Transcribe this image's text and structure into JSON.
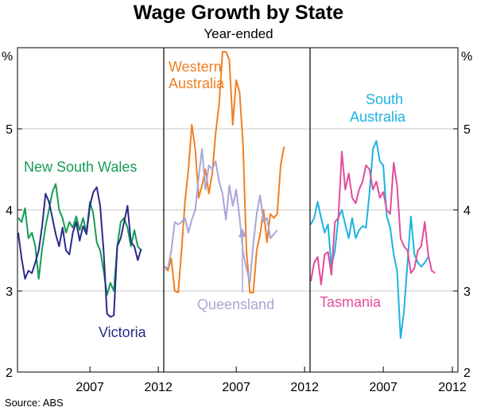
{
  "title": "Wage Growth by State",
  "subtitle": "Year-ended",
  "source": "Source: ABS",
  "unit": "%",
  "y_ticks": [
    "2",
    "3",
    "4",
    "5"
  ],
  "x_tick_labels": [
    "2007",
    "2012"
  ],
  "colors": {
    "orange": "#f07f22",
    "lavender": "#a8a6d8",
    "green": "#169b58",
    "navy": "#2a2a8a",
    "cyan": "#1cb3e0",
    "pink": "#e34c9b"
  },
  "chart_data": [
    {
      "type": "line",
      "panel": 1,
      "x_start": 2001.75,
      "x_step": 0.25,
      "ylim": [
        2,
        6
      ],
      "xlim": [
        2001.7,
        2012.4
      ],
      "xticks": [
        2007,
        2012
      ],
      "grid": true,
      "series": [
        {
          "name": "New South Wales",
          "color": "green",
          "values": [
            3.9,
            3.85,
            4.02,
            3.65,
            3.72,
            3.55,
            3.15,
            3.52,
            3.8,
            4.0,
            4.22,
            4.32,
            4.0,
            3.9,
            3.72,
            3.85,
            3.78,
            3.92,
            3.75,
            3.9,
            3.72,
            4.1,
            3.95,
            3.6,
            3.5,
            3.25,
            2.95,
            3.1,
            3.0,
            3.55,
            3.85,
            3.9,
            3.78,
            3.55,
            3.75,
            3.55,
            3.5
          ]
        },
        {
          "name": "Victoria",
          "color": "navy",
          "values": [
            3.72,
            3.4,
            3.15,
            3.25,
            3.22,
            3.35,
            3.5,
            3.8,
            4.2,
            4.1,
            3.9,
            3.7,
            3.55,
            3.78,
            3.5,
            3.45,
            3.72,
            3.85,
            3.62,
            3.8,
            3.7,
            4.05,
            4.22,
            4.28,
            4.05,
            3.5,
            2.72,
            2.68,
            2.7,
            3.55,
            3.65,
            3.85,
            4.05,
            3.6,
            3.55,
            3.38,
            3.52
          ]
        }
      ]
    },
    {
      "type": "line",
      "panel": 2,
      "x_start": 2001.75,
      "x_step": 0.25,
      "ylim": [
        2,
        6
      ],
      "xlim": [
        2001.7,
        2012.4
      ],
      "xticks": [
        2007,
        2012
      ],
      "grid": true,
      "series": [
        {
          "name": "Western Australia",
          "color": "orange",
          "values": [
            3.3,
            3.25,
            3.4,
            3.0,
            2.98,
            3.5,
            4.1,
            4.5,
            5.05,
            4.75,
            4.15,
            4.3,
            4.5,
            4.2,
            4.45,
            4.95,
            5.3,
            5.95,
            5.95,
            5.85,
            5.05,
            5.6,
            5.45,
            4.8,
            3.5,
            2.98,
            2.98,
            3.5,
            3.7,
            4.0,
            3.6,
            3.95,
            3.9,
            3.95,
            4.55,
            4.78
          ]
        },
        {
          "name": "Queensland",
          "color": "lavender",
          "values": [
            3.3,
            3.28,
            3.5,
            3.85,
            3.82,
            3.85,
            3.9,
            3.72,
            3.88,
            4.0,
            4.4,
            4.75,
            4.25,
            4.55,
            4.5,
            4.6,
            4.35,
            4.2,
            3.88,
            4.3,
            4.05,
            4.25,
            3.9,
            3.48,
            3.28,
            3.1,
            3.58,
            3.95,
            4.18,
            3.85,
            3.9,
            3.65,
            3.7,
            3.75
          ]
        }
      ]
    },
    {
      "type": "line",
      "panel": 3,
      "x_start": 2001.75,
      "x_step": 0.25,
      "ylim": [
        2,
        6
      ],
      "xlim": [
        2001.7,
        2012.4
      ],
      "xticks": [
        2007,
        2012
      ],
      "grid": true,
      "series": [
        {
          "name": "South Australia",
          "color": "cyan",
          "values": [
            3.82,
            3.9,
            4.1,
            3.9,
            3.72,
            3.82,
            3.3,
            3.5,
            3.9,
            4.0,
            3.82,
            3.65,
            3.9,
            3.65,
            3.75,
            3.8,
            3.78,
            4.2,
            4.75,
            4.85,
            4.6,
            4.55,
            3.92,
            3.78,
            3.45,
            3.25,
            2.42,
            2.75,
            3.35,
            3.92,
            3.45,
            3.35,
            3.3,
            3.35,
            3.42
          ]
        },
        {
          "name": "Tasmania",
          "color": "pink",
          "values": [
            3.12,
            3.35,
            3.42,
            3.08,
            3.45,
            3.48,
            3.2,
            3.85,
            3.9,
            4.72,
            4.25,
            4.45,
            4.15,
            4.08,
            4.25,
            4.35,
            4.55,
            4.5,
            4.25,
            4.35,
            4.15,
            4.22,
            4.0,
            3.95,
            4.58,
            4.3,
            3.65,
            3.55,
            3.5,
            3.22,
            3.28,
            3.5,
            3.55,
            3.85,
            3.45,
            3.25,
            3.22
          ]
        }
      ]
    }
  ],
  "annotations": [
    {
      "text": "New South Wales",
      "color": "green"
    },
    {
      "text": "Victoria",
      "color": "navy"
    },
    {
      "text": "Western",
      "color": "orange"
    },
    {
      "text": "Australia",
      "color": "orange"
    },
    {
      "text": "Queensland",
      "color": "lavender"
    },
    {
      "text": "South",
      "color": "cyan"
    },
    {
      "text": "Australia",
      "color": "cyan"
    },
    {
      "text": "Tasmania",
      "color": "pink"
    }
  ]
}
